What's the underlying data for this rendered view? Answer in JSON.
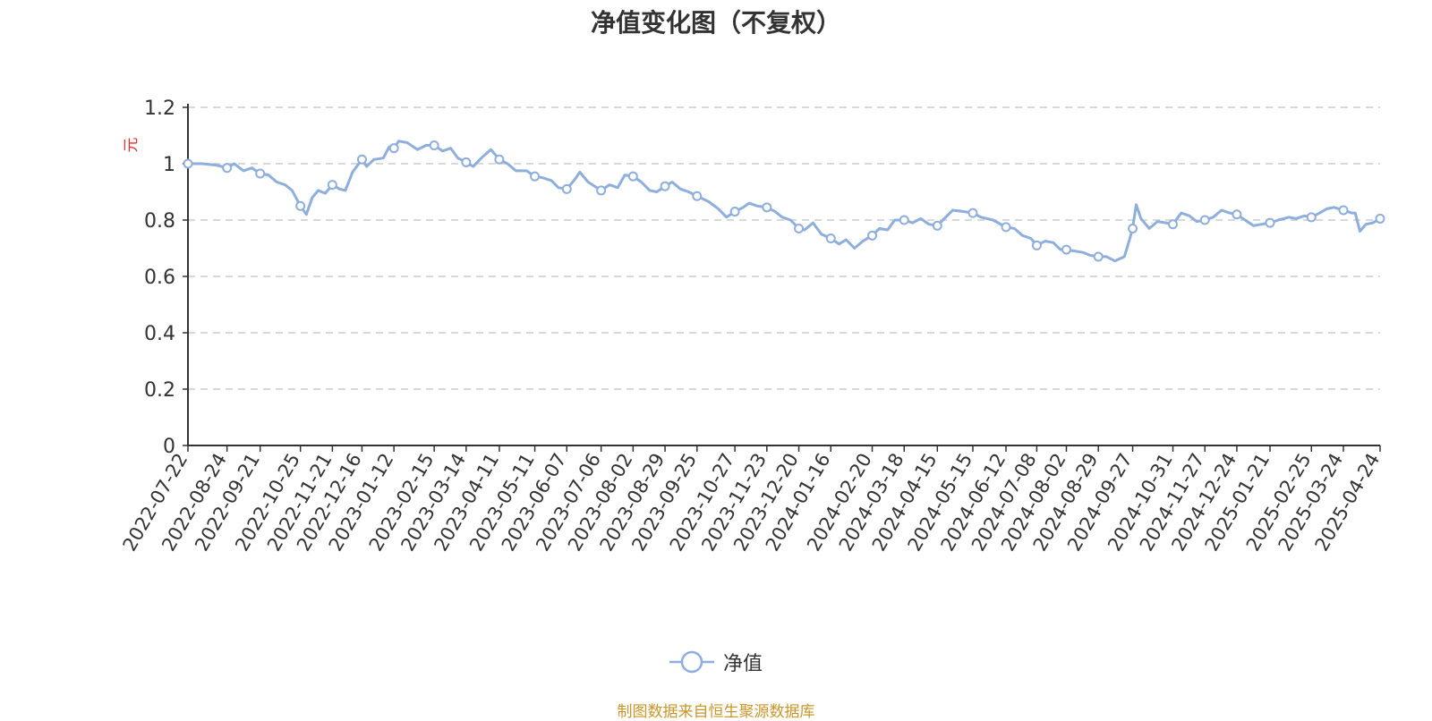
{
  "chart_data": {
    "type": "line",
    "title": "净值变化图（不复权）",
    "ylabel": "元",
    "ylim": [
      0,
      1.2
    ],
    "yticks": [
      "0",
      "0.2",
      "0.4",
      "0.6",
      "0.8",
      "1",
      "1.2"
    ],
    "xlim": [
      "2022-07-22",
      "2025-04-24"
    ],
    "xticks": [
      "2022-07-22",
      "2022-08-24",
      "2022-09-21",
      "2022-10-25",
      "2022-11-21",
      "2022-12-16",
      "2023-01-12",
      "2023-02-15",
      "2023-03-14",
      "2023-04-11",
      "2023-05-11",
      "2023-06-07",
      "2023-07-06",
      "2023-08-02",
      "2023-08-29",
      "2023-09-25",
      "2023-10-27",
      "2023-11-23",
      "2023-12-20",
      "2024-01-16",
      "2024-02-20",
      "2024-03-18",
      "2024-04-15",
      "2024-05-15",
      "2024-06-12",
      "2024-07-08",
      "2024-08-02",
      "2024-08-29",
      "2024-09-27",
      "2024-10-31",
      "2024-11-27",
      "2024-12-24",
      "2025-01-21",
      "2025-02-25",
      "2025-03-24",
      "2025-04-24"
    ],
    "grid": "horizontal-dashed",
    "legend_position": "bottom",
    "series_color": "#8eaedb",
    "series": [
      {
        "name": "净值",
        "points": [
          [
            "2022-07-22",
            1.0
          ],
          [
            "2022-08-03",
            1.0
          ],
          [
            "2022-08-15",
            0.995
          ],
          [
            "2022-08-24",
            0.985
          ],
          [
            "2022-08-30",
            1.0
          ],
          [
            "2022-09-07",
            0.975
          ],
          [
            "2022-09-14",
            0.985
          ],
          [
            "2022-09-21",
            0.965
          ],
          [
            "2022-09-28",
            0.96
          ],
          [
            "2022-10-05",
            0.935
          ],
          [
            "2022-10-12",
            0.925
          ],
          [
            "2022-10-18",
            0.905
          ],
          [
            "2022-10-25",
            0.85
          ],
          [
            "2022-10-30",
            0.82
          ],
          [
            "2022-11-04",
            0.88
          ],
          [
            "2022-11-09",
            0.905
          ],
          [
            "2022-11-15",
            0.895
          ],
          [
            "2022-11-21",
            0.925
          ],
          [
            "2022-11-27",
            0.91
          ],
          [
            "2022-12-02",
            0.905
          ],
          [
            "2022-12-08",
            0.97
          ],
          [
            "2022-12-16",
            1.015
          ],
          [
            "2022-12-20",
            0.99
          ],
          [
            "2022-12-26",
            1.015
          ],
          [
            "2023-01-03",
            1.02
          ],
          [
            "2023-01-08",
            1.06
          ],
          [
            "2023-01-12",
            1.055
          ],
          [
            "2023-01-16",
            1.08
          ],
          [
            "2023-01-23",
            1.075
          ],
          [
            "2023-02-01",
            1.05
          ],
          [
            "2023-02-08",
            1.065
          ],
          [
            "2023-02-15",
            1.065
          ],
          [
            "2023-02-22",
            1.045
          ],
          [
            "2023-03-01",
            1.055
          ],
          [
            "2023-03-07",
            1.02
          ],
          [
            "2023-03-14",
            1.005
          ],
          [
            "2023-03-20",
            0.99
          ],
          [
            "2023-03-28",
            1.025
          ],
          [
            "2023-04-04",
            1.05
          ],
          [
            "2023-04-11",
            1.015
          ],
          [
            "2023-04-18",
            1.0
          ],
          [
            "2023-04-25",
            0.975
          ],
          [
            "2023-05-04",
            0.975
          ],
          [
            "2023-05-11",
            0.955
          ],
          [
            "2023-05-18",
            0.95
          ],
          [
            "2023-05-25",
            0.94
          ],
          [
            "2023-05-31",
            0.915
          ],
          [
            "2023-06-07",
            0.91
          ],
          [
            "2023-06-14",
            0.945
          ],
          [
            "2023-06-18",
            0.97
          ],
          [
            "2023-06-25",
            0.935
          ],
          [
            "2023-07-06",
            0.905
          ],
          [
            "2023-07-13",
            0.925
          ],
          [
            "2023-07-20",
            0.915
          ],
          [
            "2023-07-26",
            0.96
          ],
          [
            "2023-08-02",
            0.955
          ],
          [
            "2023-08-09",
            0.935
          ],
          [
            "2023-08-16",
            0.905
          ],
          [
            "2023-08-22",
            0.9
          ],
          [
            "2023-08-29",
            0.92
          ],
          [
            "2023-09-04",
            0.935
          ],
          [
            "2023-09-11",
            0.91
          ],
          [
            "2023-09-18",
            0.9
          ],
          [
            "2023-09-25",
            0.885
          ],
          [
            "2023-10-05",
            0.865
          ],
          [
            "2023-10-13",
            0.84
          ],
          [
            "2023-10-20",
            0.81
          ],
          [
            "2023-10-27",
            0.83
          ],
          [
            "2023-11-03",
            0.845
          ],
          [
            "2023-11-08",
            0.86
          ],
          [
            "2023-11-15",
            0.85
          ],
          [
            "2023-11-23",
            0.845
          ],
          [
            "2023-11-30",
            0.83
          ],
          [
            "2023-12-06",
            0.81
          ],
          [
            "2023-12-13",
            0.8
          ],
          [
            "2023-12-20",
            0.77
          ],
          [
            "2023-12-25",
            0.765
          ],
          [
            "2024-01-01",
            0.79
          ],
          [
            "2024-01-08",
            0.75
          ],
          [
            "2024-01-16",
            0.735
          ],
          [
            "2024-01-23",
            0.715
          ],
          [
            "2024-01-29",
            0.73
          ],
          [
            "2024-02-05",
            0.7
          ],
          [
            "2024-02-12",
            0.725
          ],
          [
            "2024-02-20",
            0.745
          ],
          [
            "2024-02-26",
            0.77
          ],
          [
            "2024-03-04",
            0.765
          ],
          [
            "2024-03-10",
            0.8
          ],
          [
            "2024-03-18",
            0.8
          ],
          [
            "2024-03-25",
            0.79
          ],
          [
            "2024-04-01",
            0.805
          ],
          [
            "2024-04-08",
            0.785
          ],
          [
            "2024-04-15",
            0.78
          ],
          [
            "2024-04-22",
            0.81
          ],
          [
            "2024-04-28",
            0.835
          ],
          [
            "2024-05-08",
            0.83
          ],
          [
            "2024-05-15",
            0.825
          ],
          [
            "2024-05-22",
            0.81
          ],
          [
            "2024-06-01",
            0.8
          ],
          [
            "2024-06-12",
            0.775
          ],
          [
            "2024-06-19",
            0.77
          ],
          [
            "2024-06-26",
            0.745
          ],
          [
            "2024-07-03",
            0.735
          ],
          [
            "2024-07-08",
            0.71
          ],
          [
            "2024-07-15",
            0.725
          ],
          [
            "2024-07-22",
            0.72
          ],
          [
            "2024-07-28",
            0.695
          ],
          [
            "2024-08-02",
            0.695
          ],
          [
            "2024-08-09",
            0.69
          ],
          [
            "2024-08-16",
            0.685
          ],
          [
            "2024-08-22",
            0.675
          ],
          [
            "2024-08-29",
            0.67
          ],
          [
            "2024-09-05",
            0.67
          ],
          [
            "2024-09-12",
            0.655
          ],
          [
            "2024-09-20",
            0.67
          ],
          [
            "2024-09-25",
            0.74
          ],
          [
            "2024-09-27",
            0.77
          ],
          [
            "2024-09-30",
            0.855
          ],
          [
            "2024-10-04",
            0.805
          ],
          [
            "2024-10-11",
            0.77
          ],
          [
            "2024-10-18",
            0.795
          ],
          [
            "2024-10-25",
            0.79
          ],
          [
            "2024-10-31",
            0.785
          ],
          [
            "2024-11-07",
            0.825
          ],
          [
            "2024-11-14",
            0.815
          ],
          [
            "2024-11-20",
            0.795
          ],
          [
            "2024-11-27",
            0.8
          ],
          [
            "2024-12-04",
            0.81
          ],
          [
            "2024-12-11",
            0.835
          ],
          [
            "2024-12-18",
            0.825
          ],
          [
            "2024-12-24",
            0.82
          ],
          [
            "2024-12-31",
            0.8
          ],
          [
            "2025-01-07",
            0.78
          ],
          [
            "2025-01-14",
            0.785
          ],
          [
            "2025-01-21",
            0.79
          ],
          [
            "2025-01-28",
            0.8
          ],
          [
            "2025-02-06",
            0.81
          ],
          [
            "2025-02-12",
            0.805
          ],
          [
            "2025-02-19",
            0.815
          ],
          [
            "2025-02-25",
            0.81
          ],
          [
            "2025-03-04",
            0.825
          ],
          [
            "2025-03-10",
            0.84
          ],
          [
            "2025-03-16",
            0.845
          ],
          [
            "2025-03-24",
            0.835
          ],
          [
            "2025-03-31",
            0.825
          ],
          [
            "2025-04-03",
            0.825
          ],
          [
            "2025-04-07",
            0.76
          ],
          [
            "2025-04-12",
            0.785
          ],
          [
            "2025-04-18",
            0.79
          ],
          [
            "2025-04-24",
            0.805
          ]
        ],
        "markers": [
          "2022-07-22",
          "2022-08-24",
          "2022-09-21",
          "2022-10-25",
          "2022-11-21",
          "2022-12-16",
          "2023-01-12",
          "2023-02-15",
          "2023-03-14",
          "2023-04-11",
          "2023-05-11",
          "2023-06-07",
          "2023-07-06",
          "2023-08-02",
          "2023-08-29",
          "2023-09-25",
          "2023-10-27",
          "2023-11-23",
          "2023-12-20",
          "2024-01-16",
          "2024-02-20",
          "2024-03-18",
          "2024-04-15",
          "2024-05-15",
          "2024-06-12",
          "2024-07-08",
          "2024-08-02",
          "2024-08-29",
          "2024-09-27",
          "2024-10-31",
          "2024-11-27",
          "2024-12-24",
          "2025-01-21",
          "2025-02-25",
          "2025-03-24",
          "2025-04-24"
        ]
      }
    ],
    "legend": "净值",
    "source_note": "制图数据来自恒生聚源数据库"
  }
}
